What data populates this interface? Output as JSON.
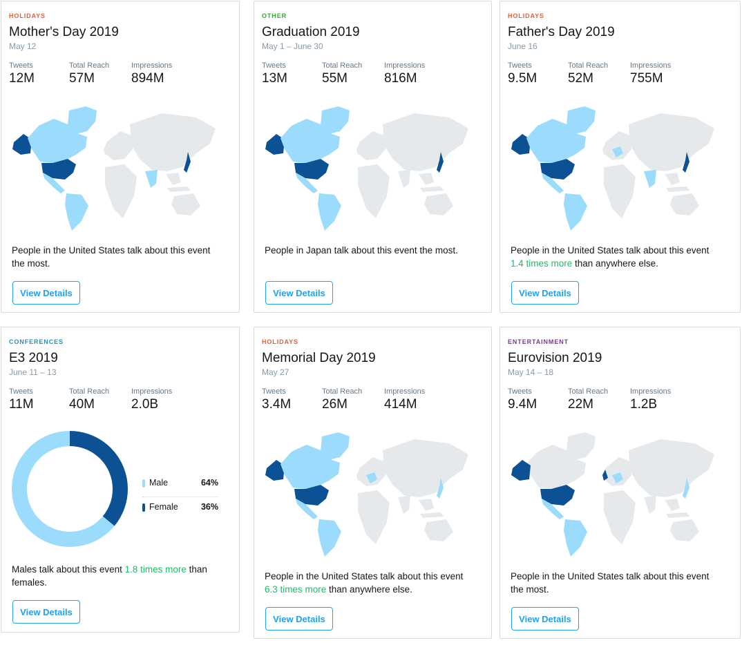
{
  "colors": {
    "holidays": "#e0603a",
    "other": "#3aa33a",
    "conferences": "#2a8fb6",
    "entertainment": "#7a3b96",
    "dark": "#0c5193",
    "light": "#9bdcfc",
    "land": "#e6e9ec",
    "highlight": "#17bf63"
  },
  "cards": [
    {
      "category": "HOLIDAYS",
      "title": "Mother's Day 2019",
      "date": "May 12",
      "stats": [
        {
          "label": "Tweets",
          "value": "12M"
        },
        {
          "label": "Total Reach",
          "value": "57M"
        },
        {
          "label": "Impressions",
          "value": "894M"
        }
      ],
      "desc_pre": "People in the United States talk about this event the most.",
      "desc_hl": "",
      "desc_post": "",
      "button": "View Details"
    },
    {
      "category": "OTHER",
      "title": "Graduation 2019",
      "date": "May 1 – June 30",
      "stats": [
        {
          "label": "Tweets",
          "value": "13M"
        },
        {
          "label": "Total Reach",
          "value": "55M"
        },
        {
          "label": "Impressions",
          "value": "816M"
        }
      ],
      "desc_pre": "People in Japan talk about this event the most.",
      "desc_hl": "",
      "desc_post": "",
      "button": "View Details"
    },
    {
      "category": "HOLIDAYS",
      "title": "Father's Day 2019",
      "date": "June 16",
      "stats": [
        {
          "label": "Tweets",
          "value": "9.5M"
        },
        {
          "label": "Total Reach",
          "value": "52M"
        },
        {
          "label": "Impressions",
          "value": "755M"
        }
      ],
      "desc_pre": "People in the United States talk about this event ",
      "desc_hl": "1.4 times more",
      "desc_post": " than anywhere else.",
      "button": "View Details"
    },
    {
      "category": "CONFERENCES",
      "title": "E3 2019",
      "date": "June 11 – 13",
      "stats": [
        {
          "label": "Tweets",
          "value": "11M"
        },
        {
          "label": "Total Reach",
          "value": "40M"
        },
        {
          "label": "Impressions",
          "value": "2.0B"
        }
      ],
      "gender": [
        {
          "label": "Male",
          "pct": "64%",
          "value": 64
        },
        {
          "label": "Female",
          "pct": "36%",
          "value": 36
        }
      ],
      "desc_pre": "Males talk about this event ",
      "desc_hl": "1.8 times more",
      "desc_post": " than females.",
      "button": "View Details"
    },
    {
      "category": "HOLIDAYS",
      "title": "Memorial Day 2019",
      "date": "May 27",
      "stats": [
        {
          "label": "Tweets",
          "value": "3.4M"
        },
        {
          "label": "Total Reach",
          "value": "26M"
        },
        {
          "label": "Impressions",
          "value": "414M"
        }
      ],
      "desc_pre": "People in the United States talk about this event ",
      "desc_hl": "6.3 times more",
      "desc_post": " than anywhere else.",
      "button": "View Details"
    },
    {
      "category": "ENTERTAINMENT",
      "title": "Eurovision 2019",
      "date": "May 14 – 18",
      "stats": [
        {
          "label": "Tweets",
          "value": "9.4M"
        },
        {
          "label": "Total Reach",
          "value": "22M"
        },
        {
          "label": "Impressions",
          "value": "1.2B"
        }
      ],
      "desc_pre": "People in the United States talk about this event the most.",
      "desc_hl": "",
      "desc_post": "",
      "button": "View Details"
    }
  ]
}
